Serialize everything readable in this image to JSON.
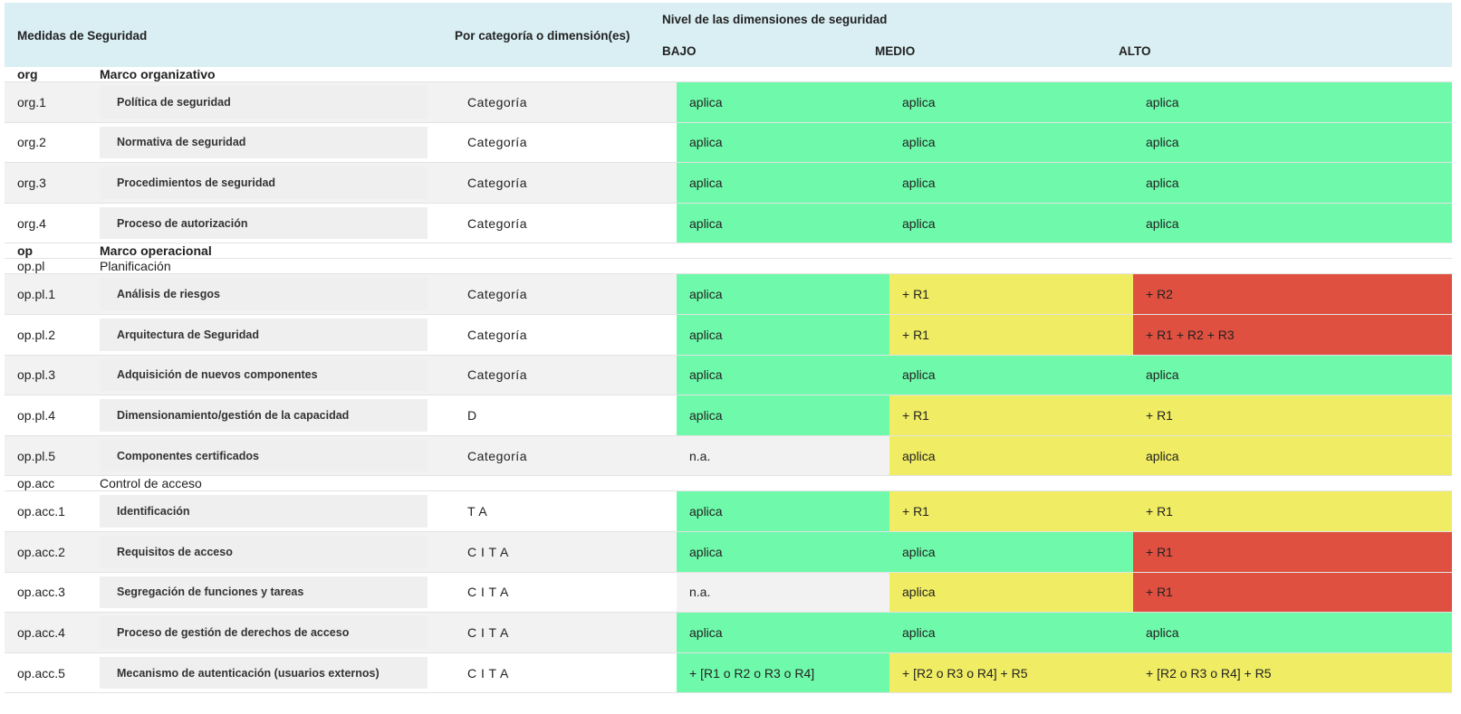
{
  "header": {
    "col_measures": "Medidas de Seguridad",
    "col_category": "Por categoría o dimensión(es)",
    "col_levels": "Nivel de las dimensiones de seguridad",
    "level_low": "BAJO",
    "level_mid": "MEDIO",
    "level_high": "ALTO"
  },
  "colors": {
    "aplica": "#6efaaa",
    "refuerzo_medio": "#f0ec63",
    "refuerzo_alto": "#e05040",
    "no_aplica": "#f2f2f2",
    "header_bg": "#d9eff3"
  },
  "rows": [
    {
      "kind": "section",
      "bold": true,
      "code": "org",
      "title": "Marco organizativo"
    },
    {
      "kind": "measure",
      "code": "org.1",
      "name": "Política de seguridad",
      "cat": "Categoría",
      "bajo": "aplica",
      "bajo_c": "green",
      "medio": "aplica",
      "medio_c": "green",
      "alto": "aplica",
      "alto_c": "green"
    },
    {
      "kind": "measure",
      "code": "org.2",
      "name": "Normativa de seguridad",
      "cat": "Categoría",
      "bajo": "aplica",
      "bajo_c": "green",
      "medio": "aplica",
      "medio_c": "green",
      "alto": "aplica",
      "alto_c": "green"
    },
    {
      "kind": "measure",
      "code": "org.3",
      "name": "Procedimientos de seguridad",
      "cat": "Categoría",
      "bajo": "aplica",
      "bajo_c": "green",
      "medio": "aplica",
      "medio_c": "green",
      "alto": "aplica",
      "alto_c": "green"
    },
    {
      "kind": "measure",
      "code": "org.4",
      "name": "Proceso de autorización",
      "cat": "Categoría",
      "bajo": "aplica",
      "bajo_c": "green",
      "medio": "aplica",
      "medio_c": "green",
      "alto": "aplica",
      "alto_c": "green"
    },
    {
      "kind": "section",
      "bold": true,
      "code": "op",
      "title": "Marco operacional"
    },
    {
      "kind": "section",
      "bold": false,
      "code": "op.pl",
      "title": "Planificación"
    },
    {
      "kind": "measure",
      "code": "op.pl.1",
      "name": "Análisis de riesgos",
      "cat": "Categoría",
      "bajo": "aplica",
      "bajo_c": "green",
      "medio": "+ R1",
      "medio_c": "yellow",
      "alto": "+ R2",
      "alto_c": "red"
    },
    {
      "kind": "measure",
      "code": "op.pl.2",
      "name": "Arquitectura de Seguridad",
      "cat": "Categoría",
      "bajo": "aplica",
      "bajo_c": "green",
      "medio": "+ R1",
      "medio_c": "yellow",
      "alto": "+ R1 + R2 + R3",
      "alto_c": "red"
    },
    {
      "kind": "measure",
      "code": "op.pl.3",
      "name": "Adquisición de nuevos componentes",
      "cat": "Categoría",
      "bajo": "aplica",
      "bajo_c": "green",
      "medio": "aplica",
      "medio_c": "green",
      "alto": "aplica",
      "alto_c": "green"
    },
    {
      "kind": "measure",
      "code": "op.pl.4",
      "name": "Dimensionamiento/gestión de la capacidad",
      "cat": "D",
      "bajo": "aplica",
      "bajo_c": "green",
      "medio": "+ R1",
      "medio_c": "yellow",
      "alto": "+ R1",
      "alto_c": "yellow"
    },
    {
      "kind": "measure",
      "code": "op.pl.5",
      "name": "Componentes certificados",
      "cat": "Categoría",
      "bajo": "n.a.",
      "bajo_c": "grey",
      "medio": "aplica",
      "medio_c": "yellow",
      "alto": "aplica",
      "alto_c": "yellow"
    },
    {
      "kind": "section",
      "bold": false,
      "code": "op.acc",
      "title": "Control de acceso"
    },
    {
      "kind": "measure",
      "code": "op.acc.1",
      "name": "Identificación",
      "cat": "T A",
      "bajo": "aplica",
      "bajo_c": "green",
      "medio": "+ R1",
      "medio_c": "yellow",
      "alto": "+ R1",
      "alto_c": "yellow"
    },
    {
      "kind": "measure",
      "code": "op.acc.2",
      "name": "Requisitos de acceso",
      "cat": "C I T A",
      "bajo": "aplica",
      "bajo_c": "green",
      "medio": "aplica",
      "medio_c": "green",
      "alto": "+ R1",
      "alto_c": "red"
    },
    {
      "kind": "measure",
      "code": "op.acc.3",
      "name": "Segregación de funciones y tareas",
      "cat": "C I T A",
      "bajo": "n.a.",
      "bajo_c": "grey",
      "medio": "aplica",
      "medio_c": "yellow",
      "alto": "+ R1",
      "alto_c": "red"
    },
    {
      "kind": "measure",
      "code": "op.acc.4",
      "name": "Proceso de gestión de derechos de acceso",
      "cat": "C I T A",
      "bajo": "aplica",
      "bajo_c": "green",
      "medio": "aplica",
      "medio_c": "green",
      "alto": "aplica",
      "alto_c": "green"
    },
    {
      "kind": "measure",
      "code": "op.acc.5",
      "name": "Mecanismo de autenticación (usuarios externos)",
      "cat": "C I T A",
      "bajo": "+ [R1 o R2 o R3 o R4]",
      "bajo_c": "green",
      "medio": "+ [R2 o R3 o R4] + R5",
      "medio_c": "yellow",
      "alto": "+ [R2 o R3 o R4] + R5",
      "alto_c": "yellow"
    }
  ]
}
